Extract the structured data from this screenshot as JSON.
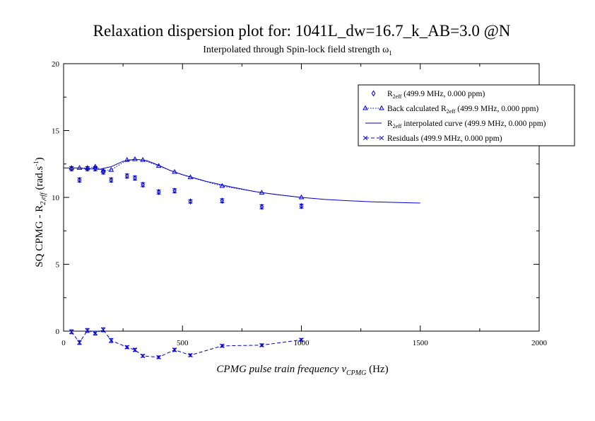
{
  "chart_data": {
    "type": "scatter",
    "title": "Relaxation dispersion plot for: 1041L_dw=16.7_k_AB=3.0 @N",
    "subtitle": {
      "text": "Interpolated through Spin-lock field strength ω",
      "sub": "1"
    },
    "xlabel": {
      "prefix": "CPMG pulse train frequency ν",
      "sub": "CPMG",
      "suffix": " (Hz)"
    },
    "ylabel": {
      "prefix": "SQ CPMG - R",
      "sub": "2,eff",
      "suffix": " (rad.s",
      "sup": "-1",
      "end": ")"
    },
    "xlim": [
      0,
      2000
    ],
    "ylim": [
      0,
      20
    ],
    "x_ticks": [
      "0",
      "500",
      "1000",
      "1500",
      "2000"
    ],
    "y_ticks": [
      "0",
      "5",
      "10",
      "15",
      "20"
    ],
    "grid": false,
    "legend_position": "top-right",
    "color": "#0000cc",
    "series": [
      {
        "key": "measured",
        "legend": {
          "pre": "R",
          "sub": "2eff",
          "post": " (499.9 MHz, 0.000 ppm)"
        },
        "marker": "diamond",
        "line": "none",
        "points": [
          {
            "x": 33.3,
            "y": 12.15,
            "err": 0.15
          },
          {
            "x": 66.7,
            "y": 11.3,
            "err": 0.15
          },
          {
            "x": 100,
            "y": 12.15,
            "err": 0.15
          },
          {
            "x": 133.3,
            "y": 12.15,
            "err": 0.15
          },
          {
            "x": 166.7,
            "y": 11.9,
            "err": 0.15
          },
          {
            "x": 200,
            "y": 11.3,
            "err": 0.15
          },
          {
            "x": 266.7,
            "y": 11.6,
            "err": 0.15
          },
          {
            "x": 300,
            "y": 11.45,
            "err": 0.15
          },
          {
            "x": 333.3,
            "y": 10.95,
            "err": 0.15
          },
          {
            "x": 400,
            "y": 10.4,
            "err": 0.15
          },
          {
            "x": 466.7,
            "y": 10.5,
            "err": 0.15
          },
          {
            "x": 533.3,
            "y": 9.7,
            "err": 0.12
          },
          {
            "x": 666.7,
            "y": 9.75,
            "err": 0.15
          },
          {
            "x": 833.3,
            "y": 9.3,
            "err": 0.15
          },
          {
            "x": 1000,
            "y": 9.35,
            "err": 0.15
          }
        ]
      },
      {
        "key": "back_calculated",
        "legend": {
          "pre": "Back calculated R",
          "sub": "2eff",
          "post": " (499.9 MHz, 0.000 ppm)"
        },
        "marker": "triangle",
        "line": "dotted",
        "points": [
          {
            "x": 33.3,
            "y": 12.2
          },
          {
            "x": 66.7,
            "y": 12.2
          },
          {
            "x": 100,
            "y": 12.2
          },
          {
            "x": 133.3,
            "y": 12.3
          },
          {
            "x": 166.7,
            "y": 12.0
          },
          {
            "x": 200,
            "y": 12.05
          },
          {
            "x": 266.7,
            "y": 12.8
          },
          {
            "x": 300,
            "y": 12.85
          },
          {
            "x": 333.3,
            "y": 12.8
          },
          {
            "x": 400,
            "y": 12.35
          },
          {
            "x": 466.7,
            "y": 11.9
          },
          {
            "x": 533.3,
            "y": 11.5
          },
          {
            "x": 666.7,
            "y": 10.85
          },
          {
            "x": 833.3,
            "y": 10.35
          },
          {
            "x": 1000,
            "y": 10.0
          }
        ]
      },
      {
        "key": "interpolated",
        "legend": {
          "pre": "R",
          "sub": "2eff",
          "post": " interpolated curve (499.9 MHz, 0.000 ppm)"
        },
        "marker": "none",
        "line": "solid",
        "points": [
          {
            "x": 0,
            "y": 12.2
          },
          {
            "x": 50,
            "y": 12.2
          },
          {
            "x": 100,
            "y": 12.15
          },
          {
            "x": 150,
            "y": 12.1
          },
          {
            "x": 200,
            "y": 12.3
          },
          {
            "x": 250,
            "y": 12.7
          },
          {
            "x": 300,
            "y": 12.85
          },
          {
            "x": 350,
            "y": 12.75
          },
          {
            "x": 400,
            "y": 12.4
          },
          {
            "x": 450,
            "y": 12.0
          },
          {
            "x": 500,
            "y": 11.7
          },
          {
            "x": 600,
            "y": 11.2
          },
          {
            "x": 700,
            "y": 10.8
          },
          {
            "x": 800,
            "y": 10.45
          },
          {
            "x": 900,
            "y": 10.2
          },
          {
            "x": 1000,
            "y": 10.0
          },
          {
            "x": 1100,
            "y": 9.85
          },
          {
            "x": 1200,
            "y": 9.75
          },
          {
            "x": 1300,
            "y": 9.67
          },
          {
            "x": 1400,
            "y": 9.62
          },
          {
            "x": 1500,
            "y": 9.58
          }
        ]
      },
      {
        "key": "residuals",
        "legend": {
          "pre": "Residuals (499.9 MHz, 0.000 ppm)",
          "sub": "",
          "post": ""
        },
        "marker": "x",
        "line": "dashed",
        "points": [
          {
            "x": 33.3,
            "y": -0.05,
            "err": 0.15
          },
          {
            "x": 66.7,
            "y": -0.85,
            "err": 0.15
          },
          {
            "x": 100,
            "y": 0.05,
            "err": 0.15
          },
          {
            "x": 133.3,
            "y": -0.15,
            "err": 0.15
          },
          {
            "x": 166.7,
            "y": 0.1,
            "err": 0.15
          },
          {
            "x": 200,
            "y": -0.7,
            "err": 0.15
          },
          {
            "x": 266.7,
            "y": -1.2,
            "err": 0.1
          },
          {
            "x": 300,
            "y": -1.4,
            "err": 0.12
          },
          {
            "x": 333.3,
            "y": -1.85,
            "err": 0.1
          },
          {
            "x": 400,
            "y": -1.95,
            "err": 0.1
          },
          {
            "x": 466.7,
            "y": -1.4,
            "err": 0.12
          },
          {
            "x": 533.3,
            "y": -1.8,
            "err": 0.1
          },
          {
            "x": 666.7,
            "y": -1.1,
            "err": 0.1
          },
          {
            "x": 833.3,
            "y": -1.05,
            "err": 0.1
          },
          {
            "x": 1000,
            "y": -0.65,
            "err": 0.1
          }
        ]
      }
    ]
  }
}
